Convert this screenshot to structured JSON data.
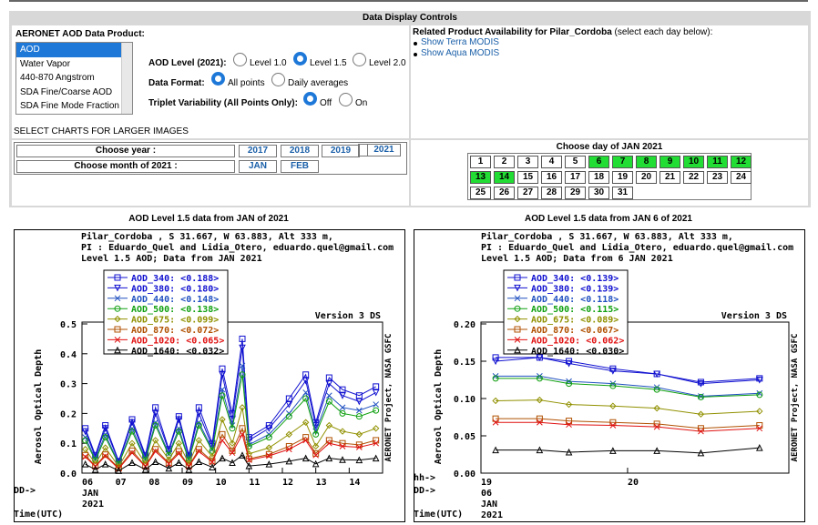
{
  "header": {
    "title": "Data Display Controls"
  },
  "product": {
    "label": "AERONET AOD Data Product:",
    "options": [
      "AOD",
      "Water Vapor",
      "440-870 Angstrom",
      "SDA Fine/Coarse AOD",
      "SDA Fine Mode Fraction"
    ],
    "selected": "AOD"
  },
  "aod_level": {
    "label": "AOD Level (2021):",
    "options": [
      "Level 1.0",
      "Level 1.5",
      "Level 2.0"
    ],
    "selected": "Level 1.5"
  },
  "data_format": {
    "label": "Data Format:",
    "options": [
      "All points",
      "Daily averages"
    ],
    "selected": "All points"
  },
  "triplet": {
    "label": "Triplet Variability (All Points Only):",
    "options": [
      "Off",
      "On"
    ],
    "selected": "Off"
  },
  "select_charts": "SELECT CHARTS FOR LARGER IMAGES",
  "related": {
    "label": "Related Product Availability for Pilar_Cordoba",
    "note": "(select each day below):",
    "links": [
      "Show Terra MODIS",
      "Show Aqua MODIS"
    ]
  },
  "year": {
    "label": "Choose year :",
    "options": [
      "2017",
      "2018",
      "2019",
      "2020",
      "2021"
    ]
  },
  "month": {
    "label": "Choose month of 2021 :",
    "options": [
      "JAN",
      "FEB"
    ]
  },
  "days": {
    "title": "Choose day of JAN 2021",
    "rows": [
      [
        "1",
        "2",
        "3",
        "4",
        "5",
        "6",
        "7",
        "8",
        "9",
        "10",
        "11",
        "12"
      ],
      [
        "13",
        "14",
        "15",
        "16",
        "17",
        "18",
        "19",
        "20",
        "21",
        "22",
        "23",
        "24"
      ],
      [
        "25",
        "26",
        "27",
        "28",
        "29",
        "30",
        "31"
      ]
    ],
    "available": [
      "6",
      "7",
      "8",
      "9",
      "10",
      "11",
      "12",
      "13",
      "14"
    ],
    "colors": {
      "available": "#22dd33"
    }
  },
  "plots": [
    {
      "title": "AOD Level 1.5 data from JAN of 2021",
      "header": [
        "Pilar_Cordoba , S 31.667, W  63.883, Alt 333 m,",
        "PI : Eduardo_Quel and Lidia_Otero, eduardo.quel@gmail.com",
        "Level 1.5 AOD; Data from JAN 2021"
      ],
      "version": "Version 3 DS",
      "side_label": "AERONET Project, NASA GSFC",
      "ylabel": "Aerosol Optical Depth",
      "x_prefix": [
        "DD->",
        "Time(UTC)"
      ],
      "x_ticks": [
        "06",
        "07",
        "08",
        "09",
        "10",
        "11",
        "12",
        "13",
        "14"
      ],
      "x_sub": [
        "JAN",
        "2021"
      ],
      "y_ticks": [
        "0.0",
        "0.1",
        "0.2",
        "0.3",
        "0.4",
        "0.5"
      ],
      "legend": [
        {
          "name": "AOD_340:",
          "value": "<0.188>"
        },
        {
          "name": "AOD_380:",
          "value": "<0.180>"
        },
        {
          "name": "AOD_440:",
          "value": "<0.148>"
        },
        {
          "name": "AOD_500:",
          "value": "<0.138>"
        },
        {
          "name": "AOD_675:",
          "value": "<0.099>"
        },
        {
          "name": "AOD_870:",
          "value": "<0.072>"
        },
        {
          "name": "AOD_1020:",
          "value": "<0.065>"
        },
        {
          "name": "AOD_1640:",
          "value": "<0.032>"
        }
      ]
    },
    {
      "title": "AOD Level 1.5 data from JAN 6 of 2021",
      "header": [
        "Pilar_Cordoba , S 31.667, W  63.883, Alt 333 m,",
        "PI : Eduardo_Quel and Lidia_Otero, eduardo.quel@gmail.com",
        "Level 1.5 AOD; Data from 6 JAN 2021"
      ],
      "version": "Version 3 DS",
      "side_label": "AERONET Project, NASA GSFC",
      "ylabel": "Aerosol Optical Depth",
      "x_prefix": [
        "hh->",
        "DD->",
        "Time(UTC)"
      ],
      "x_ticks": [
        "19",
        "20"
      ],
      "x_sub": [
        "06",
        "JAN",
        "2021"
      ],
      "y_ticks": [
        "0.00",
        "0.05",
        "0.10",
        "0.15",
        "0.20"
      ],
      "legend": [
        {
          "name": "AOD_340:",
          "value": "<0.139>"
        },
        {
          "name": "AOD_380:",
          "value": "<0.139>"
        },
        {
          "name": "AOD_440:",
          "value": "<0.118>"
        },
        {
          "name": "AOD_500:",
          "value": "<0.115>"
        },
        {
          "name": "AOD_675:",
          "value": "<0.089>"
        },
        {
          "name": "AOD_870:",
          "value": "<0.067>"
        },
        {
          "name": "AOD_1020:",
          "value": "<0.062>"
        },
        {
          "name": "AOD_1640:",
          "value": "<0.030>"
        }
      ]
    }
  ],
  "series_colors": [
    "#1010d0",
    "#1010d0",
    "#2050c0",
    "#10a010",
    "#909000",
    "#b05000",
    "#e01010",
    "#000000"
  ],
  "chart_data": [
    {
      "type": "line",
      "title": "AOD Level 1.5 data from JAN of 2021",
      "xlabel": "",
      "ylabel": "Aerosol Optical Depth",
      "x_unit": "day of JAN 2021",
      "ylim": [
        0,
        0.5
      ],
      "x": [
        6.1,
        6.4,
        6.7,
        7.1,
        7.5,
        7.9,
        8.2,
        8.6,
        8.9,
        9.2,
        9.5,
        9.9,
        10.2,
        10.5,
        10.8,
        11.0,
        11.6,
        12.2,
        12.7,
        13.0,
        13.4,
        13.8,
        14.3,
        14.8
      ],
      "series": [
        {
          "name": "AOD_340",
          "values": [
            0.15,
            0.06,
            0.16,
            0.04,
            0.18,
            0.06,
            0.22,
            0.08,
            0.19,
            0.06,
            0.22,
            0.1,
            0.35,
            0.2,
            0.45,
            0.12,
            0.16,
            0.25,
            0.33,
            0.17,
            0.32,
            0.28,
            0.26,
            0.29
          ]
        },
        {
          "name": "AOD_380",
          "values": [
            0.14,
            0.055,
            0.15,
            0.038,
            0.17,
            0.055,
            0.2,
            0.075,
            0.18,
            0.055,
            0.2,
            0.09,
            0.33,
            0.18,
            0.42,
            0.11,
            0.15,
            0.23,
            0.31,
            0.16,
            0.3,
            0.26,
            0.24,
            0.27
          ]
        },
        {
          "name": "AOD_440",
          "values": [
            0.12,
            0.048,
            0.13,
            0.032,
            0.15,
            0.048,
            0.17,
            0.065,
            0.15,
            0.048,
            0.17,
            0.08,
            0.28,
            0.16,
            0.36,
            0.095,
            0.13,
            0.2,
            0.27,
            0.14,
            0.26,
            0.22,
            0.21,
            0.23
          ]
        },
        {
          "name": "AOD_500",
          "values": [
            0.11,
            0.043,
            0.12,
            0.03,
            0.14,
            0.043,
            0.16,
            0.06,
            0.14,
            0.043,
            0.16,
            0.075,
            0.26,
            0.15,
            0.33,
            0.09,
            0.12,
            0.19,
            0.25,
            0.13,
            0.24,
            0.2,
            0.19,
            0.21
          ]
        },
        {
          "name": "AOD_675",
          "values": [
            0.08,
            0.032,
            0.085,
            0.022,
            0.1,
            0.032,
            0.11,
            0.045,
            0.1,
            0.032,
            0.11,
            0.055,
            0.18,
            0.1,
            0.22,
            0.065,
            0.085,
            0.13,
            0.17,
            0.09,
            0.16,
            0.14,
            0.13,
            0.15
          ]
        },
        {
          "name": "AOD_870",
          "values": [
            0.06,
            0.024,
            0.062,
            0.017,
            0.075,
            0.024,
            0.08,
            0.034,
            0.073,
            0.024,
            0.08,
            0.04,
            0.13,
            0.075,
            0.15,
            0.048,
            0.063,
            0.09,
            0.12,
            0.066,
            0.11,
            0.1,
            0.095,
            0.11
          ]
        },
        {
          "name": "AOD_1020",
          "values": [
            0.055,
            0.022,
            0.057,
            0.015,
            0.068,
            0.022,
            0.073,
            0.031,
            0.066,
            0.022,
            0.073,
            0.037,
            0.11,
            0.068,
            0.13,
            0.044,
            0.058,
            0.08,
            0.11,
            0.06,
            0.1,
            0.09,
            0.087,
            0.1
          ]
        },
        {
          "name": "AOD_1640",
          "values": [
            0.03,
            0.012,
            0.03,
            0.008,
            0.035,
            0.012,
            0.038,
            0.016,
            0.035,
            0.012,
            0.038,
            0.02,
            0.05,
            0.035,
            0.06,
            0.024,
            0.03,
            0.04,
            0.05,
            0.031,
            0.05,
            0.045,
            0.044,
            0.05
          ]
        }
      ]
    },
    {
      "type": "line",
      "title": "AOD Level 1.5 data from JAN 6 of 2021",
      "xlabel": "",
      "ylabel": "Aerosol Optical Depth",
      "x_unit": "hour UTC, 06 JAN 2021",
      "ylim": [
        0,
        0.2
      ],
      "x": [
        19.1,
        19.4,
        19.6,
        19.9,
        20.2,
        20.5,
        20.9
      ],
      "series": [
        {
          "name": "AOD_340",
          "values": [
            0.155,
            0.155,
            0.15,
            0.14,
            0.133,
            0.122,
            0.127
          ]
        },
        {
          "name": "AOD_380",
          "values": [
            0.15,
            0.155,
            0.147,
            0.137,
            0.133,
            0.12,
            0.125
          ]
        },
        {
          "name": "AOD_440",
          "values": [
            0.13,
            0.13,
            0.123,
            0.12,
            0.115,
            0.103,
            0.107
          ]
        },
        {
          "name": "AOD_500",
          "values": [
            0.127,
            0.127,
            0.12,
            0.117,
            0.112,
            0.102,
            0.105
          ]
        },
        {
          "name": "AOD_675",
          "values": [
            0.097,
            0.098,
            0.092,
            0.09,
            0.087,
            0.079,
            0.083
          ]
        },
        {
          "name": "AOD_870",
          "values": [
            0.073,
            0.073,
            0.07,
            0.068,
            0.066,
            0.06,
            0.064
          ]
        },
        {
          "name": "AOD_1020",
          "values": [
            0.068,
            0.068,
            0.065,
            0.064,
            0.062,
            0.056,
            0.06
          ]
        },
        {
          "name": "AOD_1640",
          "values": [
            0.031,
            0.031,
            0.028,
            0.03,
            0.03,
            0.027,
            0.034
          ]
        }
      ]
    }
  ]
}
